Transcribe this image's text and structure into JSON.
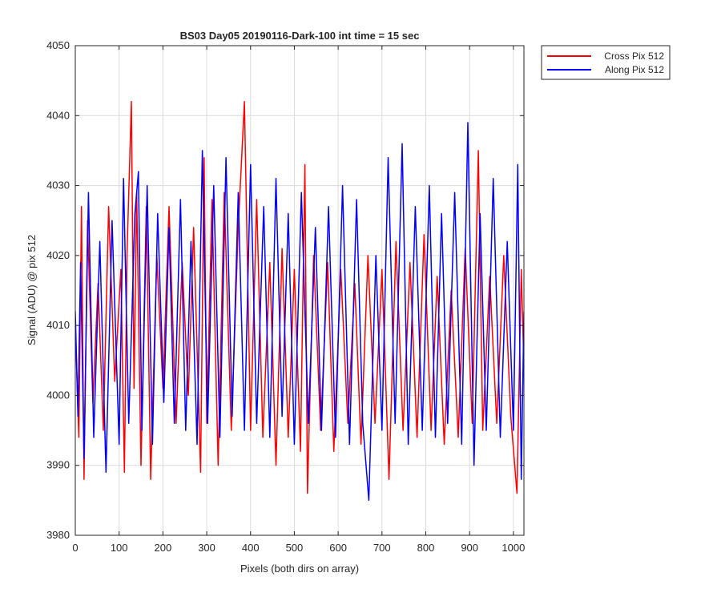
{
  "chart_data": {
    "type": "line",
    "title": "BS03 Day05 20190116-Dark-100 int time = 15 sec",
    "xlabel": "Pixels (both dirs on array)",
    "ylabel": "Signal (ADU) @ pix 512",
    "xlim": [
      0,
      1024
    ],
    "ylim": [
      3980,
      4050
    ],
    "xticks": [
      0,
      100,
      200,
      300,
      400,
      500,
      600,
      700,
      800,
      900,
      1000
    ],
    "yticks": [
      3980,
      3990,
      4000,
      4010,
      4020,
      4030,
      4040,
      4050
    ],
    "grid": true,
    "legend_position": "outside-top-right",
    "series": [
      {
        "name": "Cross Pix 512",
        "color": "#ff0000",
        "x": [
          0,
          8,
          14,
          20,
          28,
          40,
          52,
          64,
          76,
          90,
          104,
          112,
          118,
          128,
          134,
          140,
          150,
          162,
          172,
          186,
          200,
          214,
          230,
          244,
          258,
          270,
          286,
          294,
          300,
          312,
          326,
          340,
          356,
          372,
          386,
          400,
          414,
          428,
          444,
          458,
          472,
          486,
          500,
          514,
          524,
          530,
          544,
          560,
          576,
          590,
          606,
          622,
          638,
          652,
          668,
          684,
          700,
          716,
          732,
          748,
          764,
          780,
          796,
          812,
          826,
          842,
          858,
          874,
          890,
          906,
          920,
          930,
          946,
          962,
          978,
          994,
          1008,
          1018,
          1024
        ],
        "values": [
          4010,
          3994,
          4027,
          3988,
          4025,
          3999,
          4016,
          3995,
          4027,
          4002,
          4018,
          3989,
          4020,
          4042,
          4001,
          4029,
          3990,
          4027,
          3988,
          4020,
          4001,
          4027,
          3996,
          4019,
          4000,
          4024,
          3989,
          4034,
          3996,
          4028,
          3990,
          4029,
          3995,
          4024,
          4042,
          3995,
          4028,
          3994,
          4019,
          3990,
          4021,
          3994,
          4018,
          3992,
          4033,
          3986,
          4020,
          3995,
          4019,
          3992,
          4018,
          3996,
          4016,
          3993,
          4020,
          3996,
          4018,
          3988,
          4022,
          3995,
          4019,
          3994,
          4023,
          3995,
          4017,
          3993,
          4015,
          3994,
          4021,
          3996,
          4035,
          3995,
          4017,
          3996,
          4020,
          3997,
          3986,
          4018,
          4004
        ]
      },
      {
        "name": "Along Pix 512",
        "color": "#0000ff",
        "x": [
          0,
          6,
          12,
          20,
          30,
          42,
          56,
          70,
          84,
          100,
          110,
          122,
          136,
          144,
          152,
          164,
          176,
          188,
          202,
          214,
          226,
          240,
          252,
          264,
          278,
          290,
          302,
          316,
          330,
          344,
          358,
          372,
          386,
          400,
          414,
          430,
          444,
          458,
          472,
          486,
          500,
          516,
          532,
          548,
          562,
          578,
          594,
          610,
          626,
          642,
          656,
          670,
          686,
          700,
          714,
          730,
          746,
          760,
          776,
          792,
          808,
          822,
          836,
          850,
          866,
          882,
          896,
          910,
          924,
          938,
          954,
          970,
          986,
          1000,
          1010,
          1018,
          1024
        ],
        "values": [
          4012,
          3997,
          4019,
          3991,
          4029,
          3994,
          4022,
          3989,
          4025,
          3993,
          4031,
          3996,
          4026,
          4032,
          3995,
          4030,
          3993,
          4026,
          3999,
          4024,
          3996,
          4028,
          3995,
          4022,
          3993,
          4035,
          3996,
          4030,
          3994,
          4034,
          3997,
          4029,
          3995,
          4033,
          3996,
          4027,
          3994,
          4031,
          3997,
          4026,
          3993,
          4029,
          3996,
          4024,
          3995,
          4027,
          3994,
          4030,
          3993,
          4028,
          3996,
          3985,
          4020,
          3995,
          4034,
          3996,
          4036,
          3993,
          4027,
          3995,
          4030,
          3994,
          4026,
          3996,
          4029,
          3993,
          4039,
          3990,
          4026,
          3995,
          4031,
          3994,
          4022,
          3995,
          4033,
          3988,
          4012
        ]
      }
    ]
  }
}
